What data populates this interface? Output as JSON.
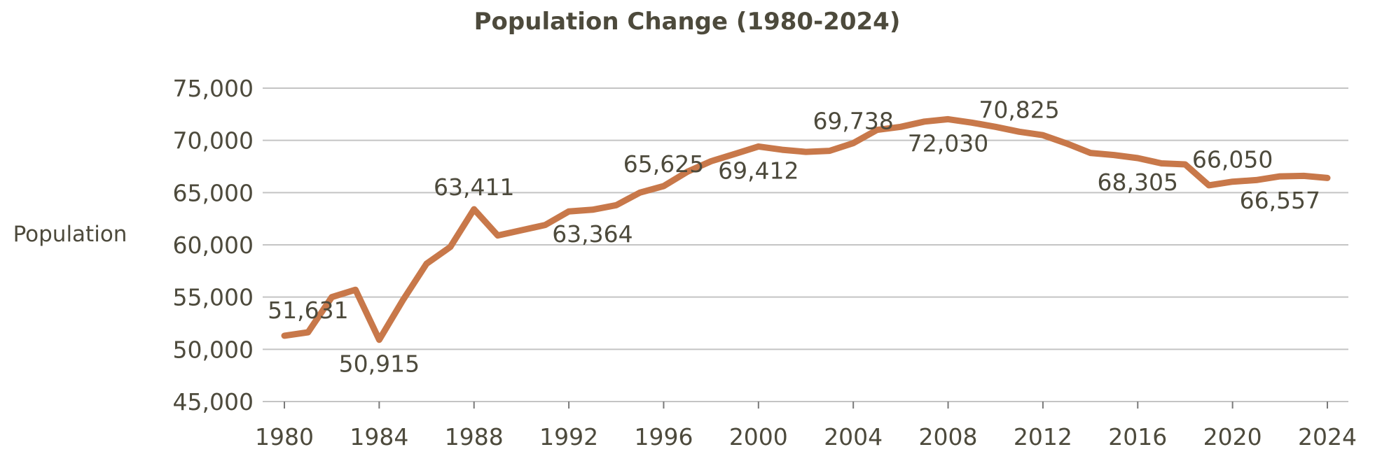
{
  "chart_data": {
    "type": "line",
    "title": "Population Change (1980-2024)",
    "xlabel": "",
    "ylabel": "Population",
    "ylim": [
      45000,
      75000
    ],
    "y_ticks": [
      45000,
      50000,
      55000,
      60000,
      65000,
      70000,
      75000
    ],
    "y_tick_labels": [
      "45,000",
      "50,000",
      "55,000",
      "60,000",
      "65,000",
      "70,000",
      "75,000"
    ],
    "x_ticks": [
      1980,
      1984,
      1988,
      1992,
      1996,
      2000,
      2004,
      2008,
      2012,
      2016,
      2020,
      2024
    ],
    "x_tick_labels": [
      "1980",
      "1984",
      "1988",
      "1992",
      "1996",
      "2000",
      "2004",
      "2008",
      "2012",
      "2016",
      "2020",
      "2024"
    ],
    "grid": true,
    "line_color": "#c8784a",
    "series": [
      {
        "x": [
          1980,
          1981,
          1982,
          1983,
          1984,
          1985,
          1986,
          1987,
          1988,
          1989,
          1990,
          1991,
          1992,
          1993,
          1994,
          1995,
          1996,
          1997,
          1998,
          1999,
          2000,
          2001,
          2002,
          2003,
          2004,
          2005,
          2006,
          2007,
          2008,
          2009,
          2010,
          2011,
          2012,
          2013,
          2014,
          2015,
          2016,
          2017,
          2018,
          2019,
          2020,
          2021,
          2022,
          2023,
          2024
        ],
        "values": [
          51300,
          51631,
          55000,
          55700,
          50915,
          54700,
          58200,
          59800,
          63411,
          60900,
          61400,
          61900,
          63200,
          63364,
          63800,
          65000,
          65625,
          67000,
          68000,
          68700,
          69412,
          69100,
          68900,
          69000,
          69738,
          71000,
          71300,
          71800,
          72030,
          71700,
          71300,
          70825,
          70500,
          69700,
          68800,
          68600,
          68305,
          67800,
          67700,
          65700,
          66050,
          66200,
          66557,
          66600,
          66400
        ]
      }
    ],
    "data_labels": [
      {
        "text": "51,631",
        "x": 1981,
        "y": 51631,
        "pos": "above"
      },
      {
        "text": "50,915",
        "x": 1984,
        "y": 50915,
        "pos": "below"
      },
      {
        "text": "63,411",
        "x": 1988,
        "y": 63411,
        "pos": "above"
      },
      {
        "text": "63,364",
        "x": 1993,
        "y": 63364,
        "pos": "below"
      },
      {
        "text": "65,625",
        "x": 1996,
        "y": 65625,
        "pos": "above"
      },
      {
        "text": "69,412",
        "x": 2000,
        "y": 69412,
        "pos": "below"
      },
      {
        "text": "69,738",
        "x": 2004,
        "y": 69738,
        "pos": "above"
      },
      {
        "text": "72,030",
        "x": 2008,
        "y": 72030,
        "pos": "below"
      },
      {
        "text": "70,825",
        "x": 2011,
        "y": 70825,
        "pos": "above"
      },
      {
        "text": "68,305",
        "x": 2016,
        "y": 68305,
        "pos": "below"
      },
      {
        "text": "66,050",
        "x": 2020,
        "y": 66050,
        "pos": "above"
      },
      {
        "text": "66,557",
        "x": 2022,
        "y": 66557,
        "pos": "below"
      }
    ]
  }
}
